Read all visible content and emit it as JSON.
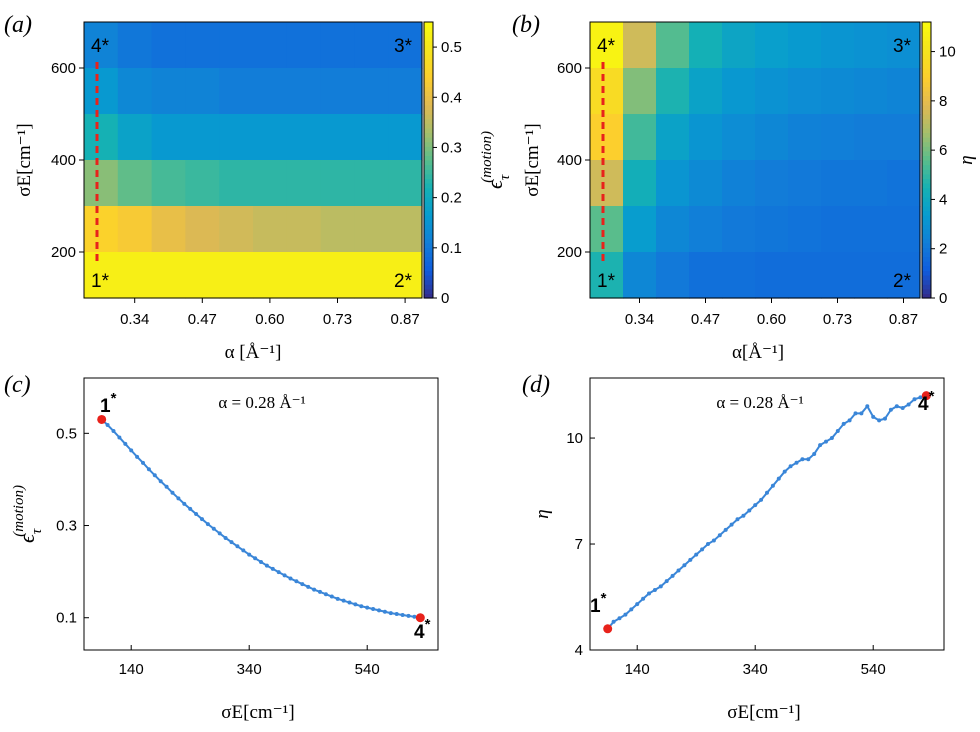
{
  "panels": {
    "a": {
      "label": "(a)",
      "type": "heatmap",
      "xlabel": "α [Å⁻¹]",
      "ylabel": "σE[cm⁻¹]",
      "x_ticks": [
        "0.34",
        "0.47",
        "0.60",
        "0.73",
        "0.87"
      ],
      "y_ticks": [
        "200",
        "400",
        "600"
      ],
      "colorbar_ticks": [
        "0",
        "0.1",
        "0.2",
        "0.3",
        "0.4",
        "0.5"
      ],
      "colorbar_range": [
        0,
        0.55
      ],
      "colorbar_label_main": "ϵ",
      "colorbar_label_sub": "τ",
      "colorbar_label_sup": "(motion)",
      "corners": [
        "1*",
        "2*",
        "3*",
        "4*"
      ],
      "values": [
        [
          0.12,
          0.1,
          0.09,
          0.09,
          0.09,
          0.09,
          0.09,
          0.09,
          0.09,
          0.09
        ],
        [
          0.16,
          0.13,
          0.12,
          0.12,
          0.11,
          0.11,
          0.11,
          0.11,
          0.11,
          0.11
        ],
        [
          0.22,
          0.18,
          0.16,
          0.16,
          0.16,
          0.16,
          0.16,
          0.16,
          0.16,
          0.16
        ],
        [
          0.31,
          0.28,
          0.26,
          0.25,
          0.24,
          0.24,
          0.24,
          0.24,
          0.24,
          0.24
        ],
        [
          0.45,
          0.43,
          0.4,
          0.38,
          0.37,
          0.36,
          0.36,
          0.35,
          0.35,
          0.35
        ],
        [
          0.52,
          0.52,
          0.52,
          0.52,
          0.52,
          0.52,
          0.52,
          0.52,
          0.52,
          0.52
        ]
      ]
    },
    "b": {
      "label": "(b)",
      "type": "heatmap",
      "xlabel": "α[Å⁻¹]",
      "ylabel": "σE[cm⁻¹]",
      "x_ticks": [
        "0.34",
        "0.47",
        "0.60",
        "0.73",
        "0.87"
      ],
      "y_ticks": [
        "200",
        "400",
        "600"
      ],
      "colorbar_ticks": [
        "0",
        "2",
        "4",
        "6",
        "8",
        "10"
      ],
      "colorbar_range": [
        0,
        11.2
      ],
      "colorbar_label_main": "η",
      "corners": [
        "1*",
        "2*",
        "3*",
        "4*"
      ],
      "values": [
        [
          10.8,
          7.5,
          5.5,
          4.4,
          3.8,
          3.5,
          3.3,
          3.1,
          3.0,
          2.9
        ],
        [
          9.6,
          6.2,
          4.6,
          3.7,
          3.2,
          3.0,
          2.8,
          2.7,
          2.6,
          2.5
        ],
        [
          9.0,
          5.2,
          3.7,
          3.1,
          2.8,
          2.6,
          2.4,
          2.3,
          2.2,
          2.2
        ],
        [
          7.5,
          4.3,
          3.1,
          2.7,
          2.4,
          2.2,
          2.1,
          2.0,
          2.0,
          1.9
        ],
        [
          5.6,
          3.4,
          2.6,
          2.3,
          2.1,
          2.0,
          1.9,
          1.8,
          1.8,
          1.8
        ],
        [
          4.6,
          2.6,
          2.1,
          1.8,
          1.8,
          1.7,
          1.7,
          1.7,
          1.7,
          1.7
        ]
      ]
    },
    "c": {
      "label": "(c)",
      "type": "line",
      "title": "α = 0.28 Å⁻¹",
      "xlabel": "σE[cm⁻¹]",
      "ylabel_main": "ϵ",
      "ylabel_sub": "τ",
      "ylabel_sup": "(motion)",
      "x_ticks": [
        140,
        340,
        540
      ],
      "y_ticks": [
        0.1,
        0.3,
        0.5
      ],
      "xlim": [
        60,
        660
      ],
      "ylim": [
        0.03,
        0.62
      ],
      "start_label": "1",
      "end_label": "4",
      "star": "*",
      "x": [
        90,
        100,
        110,
        120,
        130,
        140,
        150,
        160,
        170,
        180,
        190,
        200,
        210,
        220,
        230,
        240,
        250,
        260,
        270,
        280,
        290,
        300,
        310,
        320,
        330,
        340,
        350,
        360,
        370,
        380,
        390,
        400,
        410,
        420,
        430,
        440,
        450,
        460,
        470,
        480,
        490,
        500,
        510,
        520,
        530,
        540,
        550,
        560,
        570,
        580,
        590,
        600,
        610,
        620,
        630
      ],
      "y": [
        0.53,
        0.518,
        0.505,
        0.491,
        0.477,
        0.463,
        0.449,
        0.436,
        0.422,
        0.409,
        0.396,
        0.384,
        0.371,
        0.359,
        0.347,
        0.336,
        0.325,
        0.314,
        0.303,
        0.293,
        0.283,
        0.273,
        0.264,
        0.255,
        0.246,
        0.237,
        0.229,
        0.221,
        0.213,
        0.206,
        0.199,
        0.192,
        0.185,
        0.179,
        0.173,
        0.167,
        0.161,
        0.156,
        0.151,
        0.146,
        0.141,
        0.137,
        0.133,
        0.129,
        0.125,
        0.122,
        0.119,
        0.116,
        0.113,
        0.11,
        0.108,
        0.106,
        0.104,
        0.102,
        0.1
      ],
      "line_color": "#3a86d8",
      "endpoint_color": "#e8221b"
    },
    "d": {
      "label": "(d)",
      "type": "line",
      "title": "α = 0.28 Å⁻¹",
      "xlabel": "σE[cm⁻¹]",
      "ylabel": "η",
      "x_ticks": [
        140,
        340,
        540
      ],
      "y_ticks": [
        4,
        7,
        10
      ],
      "xlim": [
        60,
        660
      ],
      "ylim": [
        4.0,
        11.7
      ],
      "start_label": "1",
      "end_label": "4",
      "star": "*",
      "x": [
        90,
        100,
        110,
        120,
        130,
        140,
        150,
        160,
        170,
        180,
        190,
        200,
        210,
        220,
        230,
        240,
        250,
        260,
        270,
        280,
        290,
        300,
        310,
        320,
        330,
        340,
        350,
        360,
        370,
        380,
        390,
        400,
        410,
        420,
        430,
        440,
        450,
        460,
        470,
        480,
        490,
        500,
        510,
        520,
        530,
        540,
        550,
        560,
        570,
        580,
        590,
        600,
        610,
        620,
        630
      ],
      "y": [
        4.6,
        4.8,
        4.9,
        5.0,
        5.15,
        5.3,
        5.45,
        5.6,
        5.7,
        5.8,
        5.95,
        6.1,
        6.25,
        6.4,
        6.55,
        6.7,
        6.85,
        7.0,
        7.1,
        7.25,
        7.4,
        7.55,
        7.7,
        7.8,
        7.95,
        8.1,
        8.25,
        8.45,
        8.65,
        8.85,
        9.05,
        9.2,
        9.3,
        9.4,
        9.4,
        9.55,
        9.8,
        9.9,
        10.0,
        10.2,
        10.4,
        10.5,
        10.7,
        10.7,
        10.9,
        10.6,
        10.5,
        10.55,
        10.8,
        10.9,
        10.85,
        10.95,
        11.1,
        11.15,
        11.2
      ],
      "line_color": "#3a86d8",
      "endpoint_color": "#e8221b"
    }
  }
}
